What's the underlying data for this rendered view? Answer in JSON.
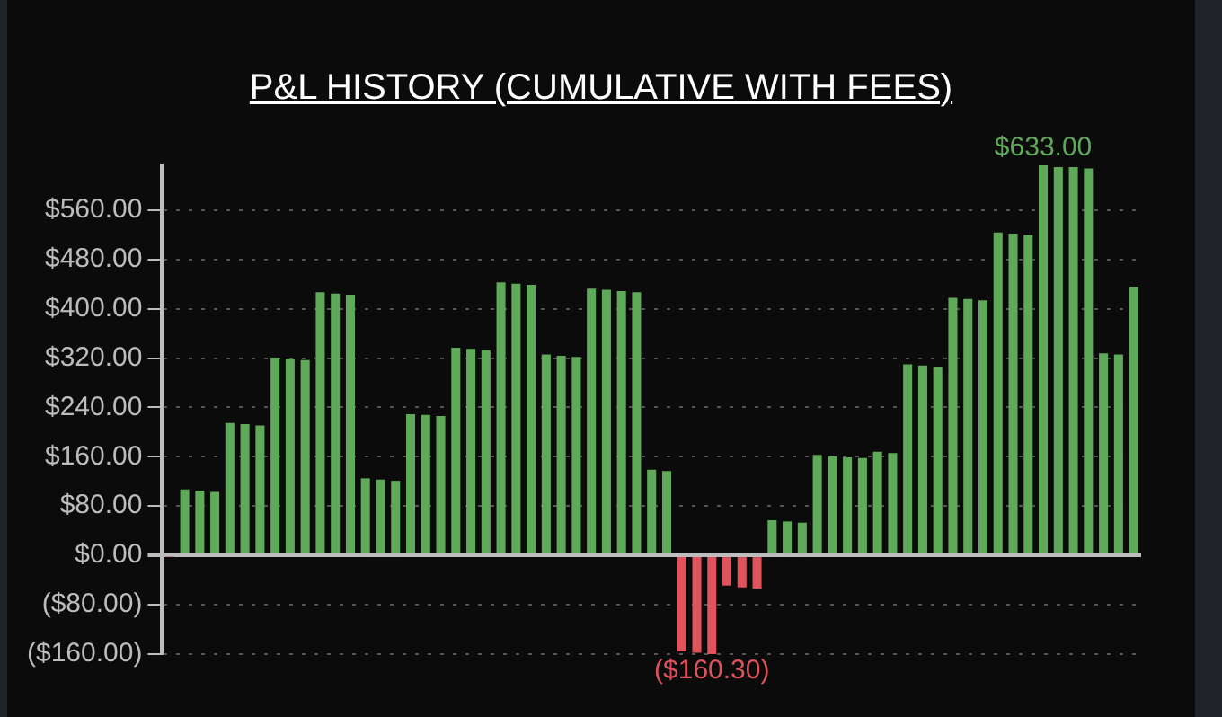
{
  "chart_data": {
    "type": "bar",
    "title": "P&L HISTORY (CUMULATIVE WITH FEES)",
    "categories": [
      null,
      null,
      null,
      null,
      null,
      null,
      null,
      null,
      null,
      null,
      null,
      null,
      null,
      null,
      null,
      null,
      null,
      null,
      null,
      null,
      null,
      null,
      null,
      null,
      null,
      null,
      null,
      null,
      null,
      null,
      null,
      null,
      null,
      null,
      null,
      null,
      null,
      null,
      null,
      null,
      null,
      null,
      null,
      null,
      null,
      null,
      null,
      null,
      null,
      null,
      null,
      null,
      null,
      null,
      null,
      null,
      null,
      null,
      null,
      null,
      null,
      null,
      null,
      null,
      null
    ],
    "values": [
      -2,
      107,
      105,
      103,
      215,
      213,
      211,
      321,
      319,
      317,
      427,
      425,
      423,
      125,
      123,
      121,
      229,
      228,
      226,
      337,
      335,
      333,
      443,
      441,
      439,
      326,
      324,
      322,
      433,
      431,
      429,
      427,
      139,
      137,
      -156,
      -158,
      -160.3,
      -49,
      -52,
      -54,
      57,
      55,
      53,
      163,
      161,
      159,
      158,
      168,
      166,
      310,
      308,
      306,
      418,
      416,
      414,
      524,
      522,
      520,
      633,
      630,
      630,
      628,
      328,
      326,
      436
    ],
    "colors": [
      "#e0525c",
      "#5faa58",
      "#5faa58",
      "#5faa58",
      "#5faa58",
      "#5faa58",
      "#5faa58",
      "#5faa58",
      "#5faa58",
      "#5faa58",
      "#5faa58",
      "#5faa58",
      "#5faa58",
      "#5faa58",
      "#5faa58",
      "#5faa58",
      "#5faa58",
      "#5faa58",
      "#5faa58",
      "#5faa58",
      "#5faa58",
      "#5faa58",
      "#5faa58",
      "#5faa58",
      "#5faa58",
      "#5faa58",
      "#5faa58",
      "#5faa58",
      "#5faa58",
      "#5faa58",
      "#5faa58",
      "#5faa58",
      "#5faa58",
      "#5faa58",
      "#e0525c",
      "#e0525c",
      "#e0525c",
      "#e0525c",
      "#e0525c",
      "#e0525c",
      "#5faa58",
      "#5faa58",
      "#5faa58",
      "#5faa58",
      "#5faa58",
      "#5faa58",
      "#5faa58",
      "#5faa58",
      "#5faa58",
      "#5faa58",
      "#5faa58",
      "#5faa58",
      "#5faa58",
      "#5faa58",
      "#5faa58",
      "#5faa58",
      "#5faa58",
      "#5faa58",
      "#5faa58",
      "#5faa58",
      "#5faa58",
      "#5faa58",
      "#5faa58",
      "#5faa58",
      "#5faa58"
    ],
    "value_labels": [
      null,
      null,
      null,
      null,
      null,
      null,
      null,
      null,
      null,
      null,
      null,
      null,
      null,
      null,
      null,
      null,
      null,
      null,
      null,
      null,
      null,
      null,
      null,
      null,
      null,
      null,
      null,
      null,
      null,
      null,
      null,
      null,
      null,
      null,
      null,
      null,
      "($160.30)",
      null,
      null,
      null,
      null,
      null,
      null,
      null,
      null,
      null,
      null,
      null,
      null,
      null,
      null,
      null,
      null,
      null,
      null,
      null,
      null,
      null,
      "$633.00",
      null,
      null,
      null,
      null,
      null,
      null
    ],
    "ylim": [
      -160.3,
      633
    ],
    "yticks": [
      {
        "value": -160,
        "label": "($160.00)"
      },
      {
        "value": -80,
        "label": "($80.00)"
      },
      {
        "value": 0,
        "label": "$0.00"
      },
      {
        "value": 80,
        "label": "$80.00"
      },
      {
        "value": 160,
        "label": "$160.00"
      },
      {
        "value": 240,
        "label": "$240.00"
      },
      {
        "value": 320,
        "label": "$320.00"
      },
      {
        "value": 400,
        "label": "$400.00"
      },
      {
        "value": 480,
        "label": "$480.00"
      },
      {
        "value": 560,
        "label": "$560.00"
      }
    ],
    "grid": "y",
    "tick_labels": "y",
    "legend": false
  }
}
